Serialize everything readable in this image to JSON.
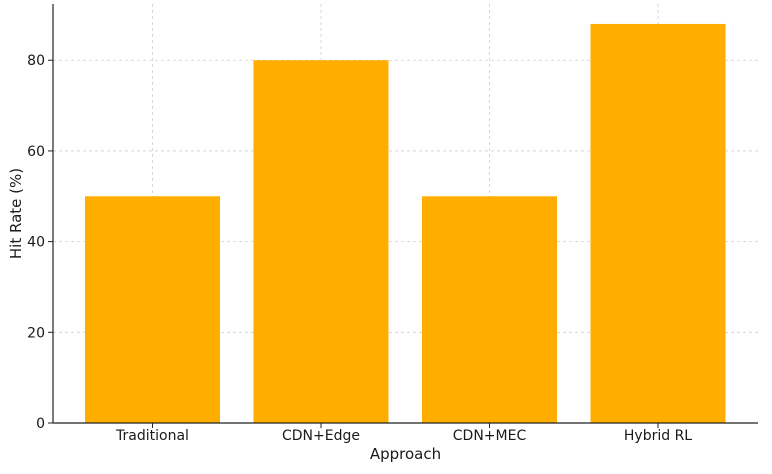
{
  "chart_data": {
    "type": "bar",
    "categories": [
      "Traditional",
      "CDN+Edge",
      "CDN+MEC",
      "Hybrid RL"
    ],
    "values": [
      50,
      80,
      50,
      88
    ],
    "title": "",
    "xlabel": "Approach",
    "ylabel": "Hit Rate (%)",
    "ylim": [
      0,
      92.4
    ],
    "yticks": [
      0,
      20,
      40,
      60,
      80
    ],
    "grid": true,
    "bar_color": "#FFAE00"
  }
}
